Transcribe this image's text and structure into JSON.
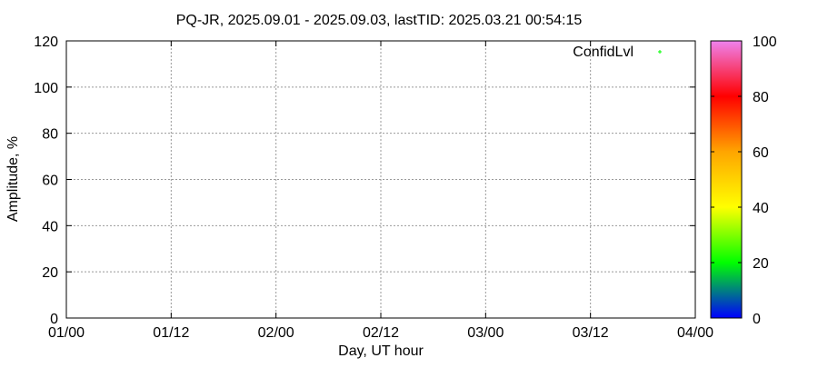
{
  "chart_data": {
    "type": "scatter",
    "title": "PQ-JR, 2025.09.01 - 2025.09.03, lastTID: 2025.03.21 00:54:15",
    "xlabel": "Day, UT hour",
    "ylabel": "Amplitude, %",
    "x_ticks": [
      "01/00",
      "01/12",
      "02/00",
      "02/12",
      "03/00",
      "03/12",
      "04/00"
    ],
    "y_ticks": [
      0,
      20,
      40,
      60,
      80,
      100,
      120
    ],
    "ylim": [
      0,
      120
    ],
    "grid": true,
    "legend": {
      "entries": [
        {
          "name": "ConfidLvl",
          "color": "#00ff00",
          "marker": "plus"
        }
      ],
      "placement": "top-right"
    },
    "series": [
      {
        "name": "ConfidLvl",
        "points": []
      }
    ],
    "colorbar": {
      "range": [
        0,
        100
      ],
      "ticks": [
        0,
        20,
        40,
        60,
        80,
        100
      ],
      "stops": [
        {
          "value": 0,
          "color": "#0000ff"
        },
        {
          "value": 10,
          "color": "#008080"
        },
        {
          "value": 20,
          "color": "#00ff00"
        },
        {
          "value": 40,
          "color": "#ffff00"
        },
        {
          "value": 60,
          "color": "#ffa500"
        },
        {
          "value": 80,
          "color": "#ff0000"
        },
        {
          "value": 100,
          "color": "#ee82ee"
        }
      ]
    }
  }
}
